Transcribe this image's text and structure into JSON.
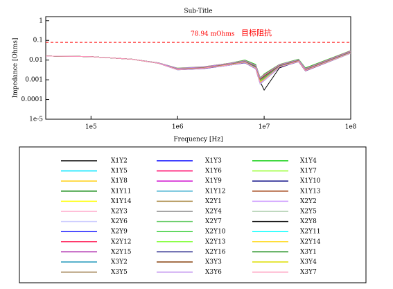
{
  "chart_data": {
    "type": "line",
    "title": "Sub-Title",
    "xlabel": "Frequency [Hz]",
    "ylabel": "Impedance [Ohms]",
    "xscale": "log",
    "yscale": "log",
    "grid": false,
    "xlim": [
      30000,
      100000000
    ],
    "ylim": [
      1e-05,
      1.6
    ],
    "xticks": [
      {
        "value": 100000,
        "label": "1e5"
      },
      {
        "value": 1000000,
        "label": "1e6"
      },
      {
        "value": 10000000,
        "label": "1e7"
      },
      {
        "value": 100000000,
        "label": "1e8"
      }
    ],
    "yticks": [
      1,
      0.1,
      0.01,
      0.001,
      0.0001,
      {
        "value": 1e-05,
        "label": "1e-5"
      }
    ],
    "target": {
      "value": 0.07894,
      "label": "78.94 mOhms",
      "name": "目标阻抗",
      "color": "#ff0000"
    },
    "x": [
      30000,
      100000,
      300000,
      600000,
      1000000,
      2000000,
      4000000,
      6000000,
      8000000,
      9000000,
      10000000,
      15000000,
      25000000,
      30000000,
      100000000
    ],
    "series": [
      {
        "name": "X1Y2",
        "color": "#000000",
        "values": [
          0.016,
          0.015,
          0.011,
          0.007,
          0.0035,
          0.004,
          0.006,
          0.008,
          0.004,
          0.0008,
          0.0003,
          0.004,
          0.009,
          0.003,
          0.025
        ]
      },
      {
        "name": "X1Y3",
        "color": "#0000ff",
        "values": [
          0.016,
          0.015,
          0.011,
          0.007,
          0.0036,
          0.0042,
          0.0065,
          0.009,
          0.005,
          0.001,
          0.0015,
          0.005,
          0.01,
          0.0035,
          0.028
        ]
      },
      {
        "name": "X1Y4",
        "color": "#00cc00",
        "values": [
          0.016,
          0.015,
          0.011,
          0.0072,
          0.0038,
          0.0045,
          0.007,
          0.01,
          0.006,
          0.0012,
          0.002,
          0.006,
          0.011,
          0.004,
          0.03
        ]
      },
      {
        "name": "X1Y5",
        "color": "#00e5ff",
        "values": [
          0.016,
          0.015,
          0.011,
          0.007,
          0.0034,
          0.0039,
          0.0058,
          0.0078,
          0.0042,
          0.0009,
          0.0012,
          0.0048,
          0.0088,
          0.0031,
          0.024
        ]
      },
      {
        "name": "X1Y6",
        "color": "#ff0066",
        "values": [
          0.016,
          0.015,
          0.011,
          0.0071,
          0.0037,
          0.0043,
          0.0062,
          0.0085,
          0.0047,
          0.0011,
          0.0016,
          0.0052,
          0.0095,
          0.0034,
          0.026
        ]
      },
      {
        "name": "X1Y7",
        "color": "#99ff33",
        "values": [
          0.016,
          0.015,
          0.011,
          0.0069,
          0.0033,
          0.0038,
          0.0056,
          0.0075,
          0.0038,
          0.0007,
          0.001,
          0.0045,
          0.0085,
          0.0029,
          0.023
        ]
      },
      {
        "name": "X1Y8",
        "color": "#ffcc00",
        "values": [
          0.016,
          0.015,
          0.011,
          0.0073,
          0.0039,
          0.0046,
          0.0068,
          0.0095,
          0.0055,
          0.0013,
          0.0018,
          0.0058,
          0.0105,
          0.0037,
          0.029
        ]
      },
      {
        "name": "X1Y9",
        "color": "#cc00cc",
        "values": [
          0.016,
          0.015,
          0.011,
          0.007,
          0.0035,
          0.0041,
          0.006,
          0.0082,
          0.0044,
          0.0009,
          0.0013,
          0.005,
          0.0092,
          0.0032,
          0.025
        ]
      },
      {
        "name": "X1Y10",
        "color": "#000080",
        "values": [
          0.016,
          0.015,
          0.011,
          0.0068,
          0.0032,
          0.0037,
          0.0055,
          0.0072,
          0.0036,
          0.0006,
          0.0009,
          0.0043,
          0.0082,
          0.0028,
          0.022
        ]
      },
      {
        "name": "X1Y11",
        "color": "#008000",
        "values": [
          0.016,
          0.015,
          0.011,
          0.0072,
          0.0038,
          0.0044,
          0.0066,
          0.0092,
          0.0052,
          0.0012,
          0.0017,
          0.0056,
          0.0102,
          0.0036,
          0.027
        ]
      },
      {
        "name": "X1Y12",
        "color": "#33aacc",
        "values": [
          0.016,
          0.015,
          0.011,
          0.007,
          0.0036,
          0.0042,
          0.0063,
          0.0087,
          0.0048,
          0.001,
          0.0014,
          0.0051,
          0.0096,
          0.0033,
          0.026
        ]
      },
      {
        "name": "X1Y13",
        "color": "#993300",
        "values": [
          0.016,
          0.015,
          0.011,
          0.0069,
          0.0034,
          0.004,
          0.0059,
          0.008,
          0.0041,
          0.0008,
          0.0011,
          0.0047,
          0.0089,
          0.003,
          0.024
        ]
      },
      {
        "name": "X1Y14",
        "color": "#ffff00",
        "values": [
          0.016,
          0.015,
          0.011,
          0.0071,
          0.0037,
          0.0043,
          0.0064,
          0.0088,
          0.0049,
          0.0011,
          0.0015,
          0.0053,
          0.0097,
          0.0034,
          0.026
        ]
      },
      {
        "name": "X2Y1",
        "color": "#aa8844",
        "values": [
          0.016,
          0.015,
          0.011,
          0.007,
          0.0035,
          0.0041,
          0.0061,
          0.0083,
          0.0045,
          0.0009,
          0.0013,
          0.0049,
          0.0091,
          0.0032,
          0.025
        ]
      },
      {
        "name": "X2Y2",
        "color": "#cc99ff",
        "values": [
          0.016,
          0.015,
          0.011,
          0.0072,
          0.0038,
          0.0045,
          0.0067,
          0.0093,
          0.0053,
          0.0012,
          0.0017,
          0.0057,
          0.0103,
          0.0036,
          0.028
        ]
      },
      {
        "name": "X2Y3",
        "color": "#ffaacc",
        "values": [
          0.016,
          0.015,
          0.011,
          0.0069,
          0.0033,
          0.0039,
          0.0057,
          0.0077,
          0.0039,
          0.0007,
          0.001,
          0.0046,
          0.0086,
          0.003,
          0.023
        ]
      },
      {
        "name": "X2Y4",
        "color": "#888888",
        "values": [
          0.016,
          0.015,
          0.011,
          0.007,
          0.0036,
          0.0042,
          0.0062,
          0.0085,
          0.0046,
          0.001,
          0.0014,
          0.005,
          0.0093,
          0.0033,
          0.025
        ]
      },
      {
        "name": "X2Y5",
        "color": "#aaccaa",
        "values": [
          0.016,
          0.015,
          0.011,
          0.0071,
          0.0037,
          0.0044,
          0.0065,
          0.009,
          0.005,
          0.0011,
          0.0016,
          0.0054,
          0.0099,
          0.0035,
          0.027
        ]
      },
      {
        "name": "X2Y6",
        "color": "#ccccff",
        "values": [
          0.016,
          0.015,
          0.011,
          0.0068,
          0.0032,
          0.0038,
          0.0055,
          0.0074,
          0.0037,
          0.0006,
          0.0009,
          0.0044,
          0.0083,
          0.0029,
          0.022
        ]
      },
      {
        "name": "X2Y7",
        "color": "#66cc66",
        "values": [
          0.016,
          0.015,
          0.011,
          0.0072,
          0.0039,
          0.0046,
          0.0069,
          0.0096,
          0.0056,
          0.0013,
          0.0019,
          0.0059,
          0.0106,
          0.0038,
          0.03
        ]
      },
      {
        "name": "X2Y8",
        "color": "#111111",
        "values": [
          0.016,
          0.015,
          0.011,
          0.007,
          0.0035,
          0.004,
          0.006,
          0.0081,
          0.0043,
          0.0008,
          0.0012,
          0.0048,
          0.009,
          0.0031,
          0.024
        ]
      },
      {
        "name": "X2Y9",
        "color": "#1a1aff",
        "values": [
          0.016,
          0.015,
          0.011,
          0.007,
          0.0036,
          0.0043,
          0.0063,
          0.0086,
          0.0047,
          0.001,
          0.0015,
          0.0052,
          0.0094,
          0.0033,
          0.026
        ]
      },
      {
        "name": "X2Y10",
        "color": "#33cc33",
        "values": [
          0.016,
          0.015,
          0.011,
          0.0071,
          0.0037,
          0.0044,
          0.0066,
          0.0091,
          0.0051,
          0.0011,
          0.0016,
          0.0055,
          0.01,
          0.0035,
          0.027
        ]
      },
      {
        "name": "X2Y11",
        "color": "#00ffff",
        "values": [
          0.016,
          0.015,
          0.011,
          0.0069,
          0.0034,
          0.0039,
          0.0058,
          0.0079,
          0.004,
          0.0008,
          0.0011,
          0.0047,
          0.0087,
          0.003,
          0.023
        ]
      },
      {
        "name": "X2Y12",
        "color": "#ff3366",
        "values": [
          0.016,
          0.015,
          0.011,
          0.0072,
          0.0038,
          0.0045,
          0.0068,
          0.0094,
          0.0054,
          0.0012,
          0.0018,
          0.0058,
          0.0104,
          0.0037,
          0.029
        ]
      },
      {
        "name": "X2Y13",
        "color": "#88ff44",
        "values": [
          0.016,
          0.015,
          0.011,
          0.007,
          0.0035,
          0.0041,
          0.0061,
          0.0084,
          0.0045,
          0.0009,
          0.0013,
          0.005,
          0.0092,
          0.0032,
          0.025
        ]
      },
      {
        "name": "X2Y14",
        "color": "#ffdd33",
        "values": [
          0.016,
          0.015,
          0.011,
          0.0071,
          0.0037,
          0.0043,
          0.0064,
          0.0089,
          0.0049,
          0.0011,
          0.0015,
          0.0053,
          0.0098,
          0.0034,
          0.026
        ]
      },
      {
        "name": "X2Y15",
        "color": "#aa22aa",
        "values": [
          0.016,
          0.015,
          0.011,
          0.0069,
          0.0033,
          0.0038,
          0.0057,
          0.0076,
          0.0038,
          0.0007,
          0.001,
          0.0045,
          0.0085,
          0.0029,
          0.023
        ]
      },
      {
        "name": "X2Y16",
        "color": "#222288",
        "values": [
          0.016,
          0.015,
          0.011,
          0.007,
          0.0036,
          0.0042,
          0.0062,
          0.0086,
          0.0047,
          0.001,
          0.0014,
          0.0051,
          0.0095,
          0.0033,
          0.026
        ]
      },
      {
        "name": "X3Y1",
        "color": "#118811",
        "values": [
          0.016,
          0.015,
          0.011,
          0.0072,
          0.0038,
          0.0044,
          0.0066,
          0.0092,
          0.0052,
          0.0012,
          0.0017,
          0.0056,
          0.0101,
          0.0036,
          0.028
        ]
      },
      {
        "name": "X3Y2",
        "color": "#2299bb",
        "values": [
          0.016,
          0.015,
          0.011,
          0.007,
          0.0035,
          0.004,
          0.0059,
          0.008,
          0.0042,
          0.0008,
          0.0012,
          0.0048,
          0.0089,
          0.0031,
          0.024
        ]
      },
      {
        "name": "X3Y3",
        "color": "#884411",
        "values": [
          0.016,
          0.015,
          0.011,
          0.0071,
          0.0037,
          0.0043,
          0.0064,
          0.0088,
          0.0048,
          0.0011,
          0.0015,
          0.0053,
          0.0097,
          0.0034,
          0.026
        ]
      },
      {
        "name": "X3Y4",
        "color": "#dddd00",
        "values": [
          0.016,
          0.015,
          0.011,
          0.0069,
          0.0034,
          0.0039,
          0.0058,
          0.0078,
          0.004,
          0.0008,
          0.0011,
          0.0046,
          0.0087,
          0.003,
          0.023
        ]
      },
      {
        "name": "X3Y5",
        "color": "#997744",
        "values": [
          0.016,
          0.015,
          0.011,
          0.007,
          0.0036,
          0.0042,
          0.0063,
          0.0087,
          0.0048,
          0.001,
          0.0014,
          0.0052,
          0.0094,
          0.0033,
          0.026
        ]
      },
      {
        "name": "X3Y6",
        "color": "#bb88ee",
        "values": [
          0.016,
          0.015,
          0.011,
          0.0072,
          0.0038,
          0.0045,
          0.0067,
          0.0093,
          0.0053,
          0.0012,
          0.0017,
          0.0057,
          0.0103,
          0.0036,
          0.028
        ]
      },
      {
        "name": "X3Y7",
        "color": "#ff99bb",
        "values": [
          0.016,
          0.015,
          0.011,
          0.0069,
          0.0033,
          0.0039,
          0.0057,
          0.0077,
          0.0039,
          0.0007,
          0.001,
          0.0046,
          0.0086,
          0.003,
          0.023
        ]
      }
    ]
  }
}
